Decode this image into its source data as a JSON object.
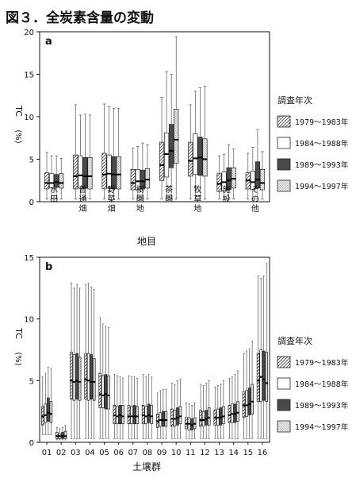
{
  "figure_title": "図３．全炭素含量の変動",
  "legend": {
    "title": "調査年次",
    "entries": [
      "1979～1983年",
      "1984～1988年",
      "1989～1993年",
      "1994～1997年"
    ]
  },
  "colors": {
    "s1_pattern": "hatch-diagonal",
    "s2": "#ffffff",
    "s3": "#4a4a4a",
    "s4_pattern": "dotted-light"
  },
  "chart_data": [
    {
      "type": "boxplot",
      "panel_label": "a",
      "ylabel_top": "TC",
      "ylabel_bottom": "(%)",
      "xlabel": "地目",
      "ylim": [
        0,
        20
      ],
      "yticks": [
        0,
        5,
        10,
        15,
        20
      ],
      "grid": false,
      "legend_position": "right",
      "categories": [
        "水田",
        "普通畑",
        "野菜畑",
        "樹園地",
        "茶園",
        "牧草地",
        "施設",
        "その他"
      ],
      "series": [
        {
          "name": "1979～1983年",
          "boxes": [
            {
              "min": 0.3,
              "q1": 1.5,
              "median": 2.2,
              "q3": 3.4,
              "max": 5.8
            },
            {
              "min": 0.3,
              "q1": 1.5,
              "median": 3.0,
              "q3": 5.5,
              "max": 11.4
            },
            {
              "min": 0.3,
              "q1": 1.5,
              "median": 3.2,
              "q3": 5.7,
              "max": 11.5
            },
            {
              "min": 0.3,
              "q1": 1.4,
              "median": 2.2,
              "q3": 3.8,
              "max": 6.3
            },
            {
              "min": 0.3,
              "q1": 2.5,
              "median": 4.3,
              "q3": 7.0,
              "max": 12.3
            },
            {
              "min": 0.3,
              "q1": 3.0,
              "median": 4.8,
              "q3": 7.0,
              "max": 11.4
            },
            {
              "min": 0.3,
              "q1": 1.2,
              "median": 2.1,
              "q3": 3.3,
              "max": 5.4
            },
            {
              "min": 0.3,
              "q1": 1.5,
              "median": 2.5,
              "q3": 3.4,
              "max": 5.7
            }
          ]
        },
        {
          "name": "1984～1988年",
          "boxes": [
            {
              "min": 0.3,
              "q1": 1.6,
              "median": 2.2,
              "q3": 3.3,
              "max": 5.4
            },
            {
              "min": 0.3,
              "q1": 1.6,
              "median": 3.1,
              "q3": 5.4,
              "max": 10.2
            },
            {
              "min": 0.3,
              "q1": 1.6,
              "median": 3.3,
              "q3": 5.5,
              "max": 11.2
            },
            {
              "min": 0.3,
              "q1": 1.4,
              "median": 2.4,
              "q3": 3.8,
              "max": 6.5
            },
            {
              "min": 0.3,
              "q1": 2.9,
              "median": 5.6,
              "q3": 8.1,
              "max": 15.3
            },
            {
              "min": 0.3,
              "q1": 3.2,
              "median": 5.1,
              "q3": 8.0,
              "max": 13.0
            },
            {
              "min": 0.3,
              "q1": 1.3,
              "median": 2.3,
              "q3": 3.5,
              "max": 5.6
            },
            {
              "min": 0.3,
              "q1": 1.4,
              "median": 2.3,
              "q3": 3.6,
              "max": 6.4
            }
          ]
        },
        {
          "name": "1989～1993年",
          "boxes": [
            {
              "min": 0.3,
              "q1": 1.7,
              "median": 2.3,
              "q3": 3.2,
              "max": 5.4
            },
            {
              "min": 0.3,
              "q1": 1.6,
              "median": 3.0,
              "q3": 5.2,
              "max": 10.3
            },
            {
              "min": 0.3,
              "q1": 1.5,
              "median": 3.2,
              "q3": 5.3,
              "max": 11.0
            },
            {
              "min": 0.3,
              "q1": 1.5,
              "median": 2.4,
              "q3": 3.7,
              "max": 6.9
            },
            {
              "min": 0.3,
              "q1": 4.0,
              "median": 6.0,
              "q3": 9.1,
              "max": 15.0
            },
            {
              "min": 0.3,
              "q1": 3.1,
              "median": 5.2,
              "q3": 7.6,
              "max": 13.4
            },
            {
              "min": 0.3,
              "q1": 1.4,
              "median": 2.5,
              "q3": 4.0,
              "max": 6.7
            },
            {
              "min": 0.3,
              "q1": 1.6,
              "median": 2.6,
              "q3": 4.7,
              "max": 8.5
            }
          ]
        },
        {
          "name": "1994～1997年",
          "boxes": [
            {
              "min": 0.3,
              "q1": 1.6,
              "median": 2.2,
              "q3": 3.3,
              "max": 5.1
            },
            {
              "min": 0.3,
              "q1": 1.5,
              "median": 3.0,
              "q3": 5.2,
              "max": 10.2
            },
            {
              "min": 0.3,
              "q1": 1.5,
              "median": 3.2,
              "q3": 5.3,
              "max": 11.0
            },
            {
              "min": 0.3,
              "q1": 1.6,
              "median": 2.6,
              "q3": 3.9,
              "max": 6.7
            },
            {
              "min": 0.3,
              "q1": 4.5,
              "median": 7.3,
              "q3": 10.9,
              "max": 19.4
            },
            {
              "min": 0.3,
              "q1": 3.0,
              "median": 5.0,
              "q3": 7.4,
              "max": 13.6
            },
            {
              "min": 0.3,
              "q1": 1.6,
              "median": 2.7,
              "q3": 4.0,
              "max": 6.2
            },
            {
              "min": 0.3,
              "q1": 1.4,
              "median": 2.2,
              "q3": 3.8,
              "max": 5.9
            }
          ]
        }
      ]
    },
    {
      "type": "boxplot",
      "panel_label": "b",
      "ylabel_top": "TC",
      "ylabel_bottom": "(%)",
      "xlabel": "土壌群",
      "ylim": [
        0,
        15
      ],
      "yticks": [
        0,
        5,
        10,
        15
      ],
      "grid": false,
      "legend_position": "right",
      "categories": [
        "01",
        "02",
        "03",
        "04",
        "05",
        "06",
        "07",
        "08",
        "09",
        "10",
        "11",
        "12",
        "13",
        "14",
        "15",
        "16"
      ],
      "series": [
        {
          "name": "1979～1983年",
          "boxes": [
            {
              "min": 0.6,
              "q1": 1.4,
              "median": 2.1,
              "q3": 2.9,
              "max": 5.3
            },
            {
              "min": 0.2,
              "q1": 0.3,
              "median": 0.5,
              "q3": 0.8,
              "max": 1.2
            },
            {
              "min": 0.3,
              "q1": 3.5,
              "median": 5.0,
              "q3": 7.3,
              "max": 12.9
            },
            {
              "min": 0.3,
              "q1": 3.5,
              "median": 5.1,
              "q3": 7.2,
              "max": 12.8
            },
            {
              "min": 0.3,
              "q1": 2.8,
              "median": 3.9,
              "q3": 5.6,
              "max": 10.1
            },
            {
              "min": 0.3,
              "q1": 1.5,
              "median": 2.2,
              "q3": 3.0,
              "max": 5.5
            },
            {
              "min": 0.3,
              "q1": 1.5,
              "median": 2.1,
              "q3": 3.0,
              "max": 5.4
            },
            {
              "min": 0.3,
              "q1": 1.5,
              "median": 2.2,
              "q3": 3.0,
              "max": 5.5
            },
            {
              "min": 0.3,
              "q1": 1.2,
              "median": 1.7,
              "q3": 2.3,
              "max": 4.0
            },
            {
              "min": 0.3,
              "q1": 1.3,
              "median": 1.9,
              "q3": 2.7,
              "max": 4.8
            },
            {
              "min": 0.3,
              "q1": 1.1,
              "median": 1.5,
              "q3": 2.0,
              "max": 3.2
            },
            {
              "min": 0.3,
              "q1": 1.3,
              "median": 1.8,
              "q3": 2.6,
              "max": 4.7
            },
            {
              "min": 0.3,
              "q1": 1.4,
              "median": 2.0,
              "q3": 2.6,
              "max": 4.5
            },
            {
              "min": 0.3,
              "q1": 1.6,
              "median": 2.2,
              "q3": 3.0,
              "max": 5.2
            },
            {
              "min": 0.3,
              "q1": 2.0,
              "median": 3.0,
              "q3": 4.1,
              "max": 7.2
            },
            {
              "min": 0.3,
              "q1": 3.3,
              "median": 5.0,
              "q3": 7.2,
              "max": 13.5
            }
          ]
        },
        {
          "name": "1984～1988年",
          "boxes": [
            {
              "min": 0.6,
              "q1": 1.6,
              "median": 2.2,
              "q3": 3.1,
              "max": 5.6
            },
            {
              "min": 0.2,
              "q1": 0.3,
              "median": 0.5,
              "q3": 0.7,
              "max": 1.1
            },
            {
              "min": 0.3,
              "q1": 3.4,
              "median": 4.9,
              "q3": 7.1,
              "max": 12.5
            },
            {
              "min": 0.3,
              "q1": 3.4,
              "median": 5.0,
              "q3": 7.2,
              "max": 12.9
            },
            {
              "min": 0.3,
              "q1": 2.8,
              "median": 3.8,
              "q3": 5.4,
              "max": 9.6
            },
            {
              "min": 0.3,
              "q1": 1.5,
              "median": 2.1,
              "q3": 2.9,
              "max": 5.4
            },
            {
              "min": 0.3,
              "q1": 1.5,
              "median": 2.1,
              "q3": 2.9,
              "max": 5.3
            },
            {
              "min": 0.3,
              "q1": 1.5,
              "median": 2.1,
              "q3": 2.9,
              "max": 5.3
            },
            {
              "min": 0.3,
              "q1": 1.3,
              "median": 1.8,
              "q3": 2.4,
              "max": 4.2
            },
            {
              "min": 0.3,
              "q1": 1.3,
              "median": 1.9,
              "q3": 2.6,
              "max": 4.7
            },
            {
              "min": 0.3,
              "q1": 1.0,
              "median": 1.5,
              "q3": 2.0,
              "max": 3.1
            },
            {
              "min": 0.3,
              "q1": 1.3,
              "median": 1.8,
              "q3": 2.5,
              "max": 4.6
            },
            {
              "min": 0.3,
              "q1": 1.4,
              "median": 2.0,
              "q3": 2.7,
              "max": 4.6
            },
            {
              "min": 0.3,
              "q1": 1.6,
              "median": 2.3,
              "q3": 3.1,
              "max": 5.3
            },
            {
              "min": 0.3,
              "q1": 2.1,
              "median": 3.0,
              "q3": 4.2,
              "max": 7.4
            },
            {
              "min": 0.3,
              "q1": 3.3,
              "median": 5.3,
              "q3": 7.5,
              "max": 13.3
            }
          ]
        },
        {
          "name": "1989～1993年",
          "boxes": [
            {
              "min": 0.6,
              "q1": 1.7,
              "median": 2.4,
              "q3": 3.6,
              "max": 6.1
            },
            {
              "min": 0.2,
              "q1": 0.3,
              "median": 0.5,
              "q3": 0.8,
              "max": 1.2
            },
            {
              "min": 0.3,
              "q1": 3.5,
              "median": 5.0,
              "q3": 7.2,
              "max": 12.8
            },
            {
              "min": 0.3,
              "q1": 3.5,
              "median": 4.9,
              "q3": 7.1,
              "max": 12.6
            },
            {
              "min": 0.3,
              "q1": 2.7,
              "median": 3.9,
              "q3": 5.5,
              "max": 9.4
            },
            {
              "min": 0.3,
              "q1": 1.5,
              "median": 2.2,
              "q3": 3.0,
              "max": 5.3
            },
            {
              "min": 0.3,
              "q1": 1.5,
              "median": 2.1,
              "q3": 3.0,
              "max": 5.3
            },
            {
              "min": 0.3,
              "q1": 1.6,
              "median": 2.2,
              "q3": 3.1,
              "max": 5.5
            },
            {
              "min": 0.3,
              "q1": 1.3,
              "median": 1.8,
              "q3": 2.5,
              "max": 4.3
            },
            {
              "min": 0.3,
              "q1": 1.4,
              "median": 2.0,
              "q3": 2.8,
              "max": 5.0
            },
            {
              "min": 0.3,
              "q1": 1.0,
              "median": 1.4,
              "q3": 1.9,
              "max": 3.0
            },
            {
              "min": 0.3,
              "q1": 1.4,
              "median": 1.9,
              "q3": 2.6,
              "max": 4.8
            },
            {
              "min": 0.3,
              "q1": 1.4,
              "median": 2.0,
              "q3": 2.8,
              "max": 4.7
            },
            {
              "min": 0.3,
              "q1": 1.6,
              "median": 2.3,
              "q3": 3.1,
              "max": 5.5
            },
            {
              "min": 0.3,
              "q1": 2.2,
              "median": 3.1,
              "q3": 4.4,
              "max": 7.6
            },
            {
              "min": 0.3,
              "q1": 3.4,
              "median": 5.1,
              "q3": 7.4,
              "max": 13.5
            }
          ]
        },
        {
          "name": "1994～1997年",
          "boxes": [
            {
              "min": 0.6,
              "q1": 1.6,
              "median": 2.3,
              "q3": 3.3,
              "max": 6.0
            },
            {
              "min": 0.2,
              "q1": 0.3,
              "median": 0.5,
              "q3": 0.9,
              "max": 1.4
            },
            {
              "min": 0.3,
              "q1": 3.4,
              "median": 4.9,
              "q3": 6.9,
              "max": 12.5
            },
            {
              "min": 0.3,
              "q1": 3.4,
              "median": 4.9,
              "q3": 6.8,
              "max": 12.4
            },
            {
              "min": 0.3,
              "q1": 2.7,
              "median": 3.8,
              "q3": 5.4,
              "max": 9.3
            },
            {
              "min": 0.3,
              "q1": 1.5,
              "median": 2.1,
              "q3": 3.0,
              "max": 5.2
            },
            {
              "min": 0.3,
              "q1": 1.5,
              "median": 2.1,
              "q3": 2.9,
              "max": 5.2
            },
            {
              "min": 0.3,
              "q1": 1.5,
              "median": 2.1,
              "q3": 3.0,
              "max": 5.3
            },
            {
              "min": 0.3,
              "q1": 1.3,
              "median": 1.8,
              "q3": 2.5,
              "max": 4.3
            },
            {
              "min": 0.3,
              "q1": 1.5,
              "median": 2.1,
              "q3": 2.9,
              "max": 5.1
            },
            {
              "min": 0.3,
              "q1": 1.1,
              "median": 1.5,
              "q3": 2.0,
              "max": 3.2
            },
            {
              "min": 0.3,
              "q1": 1.4,
              "median": 2.0,
              "q3": 2.8,
              "max": 5.0
            },
            {
              "min": 0.3,
              "q1": 1.5,
              "median": 2.1,
              "q3": 2.9,
              "max": 5.0
            },
            {
              "min": 0.3,
              "q1": 1.7,
              "median": 2.4,
              "q3": 3.3,
              "max": 5.8
            },
            {
              "min": 0.3,
              "q1": 2.3,
              "median": 3.3,
              "q3": 4.7,
              "max": 8.2
            },
            {
              "min": 0.3,
              "q1": 3.3,
              "median": 4.8,
              "q3": 7.3,
              "max": 14.5
            }
          ]
        }
      ]
    }
  ]
}
